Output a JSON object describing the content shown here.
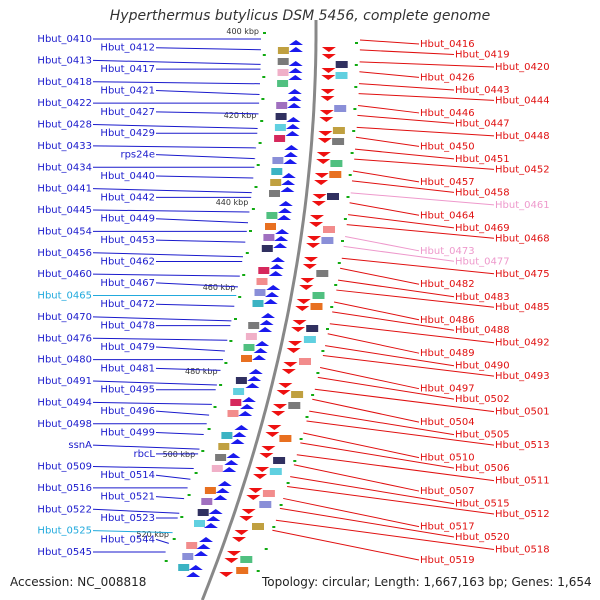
{
  "title": "Hyperthermus butylicus DSM 5456, complete genome",
  "footer": {
    "accession": "Accession: NC_008818",
    "topology": "Topology: circular; Length: 1,667,163 bp; Genes: 1,654"
  },
  "colors": {
    "left_label": "#1a1acc",
    "left_label_light": "#22aadd",
    "right_label": "#e01010",
    "right_label_light": "#ee99cc",
    "backbone": "#888888",
    "tick_mark": "#11aa11",
    "forward_arrow": "#1a1aee",
    "reverse_arrow": "#ee1111"
  },
  "scale_labels": [
    {
      "text": "400 kbp"
    },
    {
      "text": "420 kbp"
    },
    {
      "text": "440 kbp"
    },
    {
      "text": "460 kbp"
    },
    {
      "text": "480 kbp"
    },
    {
      "text": "500 kbp"
    },
    {
      "text": "520 kbp"
    }
  ],
  "left_genes": [
    {
      "text": "Hbut_0410",
      "style": "normal"
    },
    {
      "text": "Hbut_0412",
      "style": "normal"
    },
    {
      "text": "Hbut_0413",
      "style": "normal"
    },
    {
      "text": "Hbut_0417",
      "style": "normal"
    },
    {
      "text": "Hbut_0418",
      "style": "normal"
    },
    {
      "text": "Hbut_0421",
      "style": "normal"
    },
    {
      "text": "Hbut_0422",
      "style": "normal"
    },
    {
      "text": "Hbut_0427",
      "style": "normal"
    },
    {
      "text": "Hbut_0428",
      "style": "normal"
    },
    {
      "text": "Hbut_0429",
      "style": "normal"
    },
    {
      "text": "Hbut_0433",
      "style": "normal"
    },
    {
      "text": "rps24e",
      "style": "normal"
    },
    {
      "text": "Hbut_0434",
      "style": "normal"
    },
    {
      "text": "Hbut_0440",
      "style": "normal"
    },
    {
      "text": "Hbut_0441",
      "style": "normal"
    },
    {
      "text": "Hbut_0442",
      "style": "normal"
    },
    {
      "text": "Hbut_0445",
      "style": "normal"
    },
    {
      "text": "Hbut_0449",
      "style": "normal"
    },
    {
      "text": "Hbut_0454",
      "style": "normal"
    },
    {
      "text": "Hbut_0453",
      "style": "normal"
    },
    {
      "text": "Hbut_0456",
      "style": "normal"
    },
    {
      "text": "Hbut_0462",
      "style": "normal"
    },
    {
      "text": "Hbut_0460",
      "style": "normal"
    },
    {
      "text": "Hbut_0467",
      "style": "normal"
    },
    {
      "text": "Hbut_0465",
      "style": "light"
    },
    {
      "text": "Hbut_0472",
      "style": "normal"
    },
    {
      "text": "Hbut_0470",
      "style": "normal"
    },
    {
      "text": "Hbut_0478",
      "style": "normal"
    },
    {
      "text": "Hbut_0476",
      "style": "normal"
    },
    {
      "text": "Hbut_0479",
      "style": "normal"
    },
    {
      "text": "Hbut_0480",
      "style": "normal"
    },
    {
      "text": "Hbut_0481",
      "style": "normal"
    },
    {
      "text": "Hbut_0491",
      "style": "normal"
    },
    {
      "text": "Hbut_0495",
      "style": "normal"
    },
    {
      "text": "Hbut_0494",
      "style": "normal"
    },
    {
      "text": "Hbut_0496",
      "style": "normal"
    },
    {
      "text": "Hbut_0498",
      "style": "normal"
    },
    {
      "text": "Hbut_0499",
      "style": "normal"
    },
    {
      "text": "ssnA",
      "style": "normal"
    },
    {
      "text": "rbcL",
      "style": "normal"
    },
    {
      "text": "Hbut_0509",
      "style": "normal"
    },
    {
      "text": "Hbut_0514",
      "style": "normal"
    },
    {
      "text": "Hbut_0516",
      "style": "normal"
    },
    {
      "text": "Hbut_0521",
      "style": "normal"
    },
    {
      "text": "Hbut_0522",
      "style": "normal"
    },
    {
      "text": "Hbut_0523",
      "style": "normal"
    },
    {
      "text": "Hbut_0525",
      "style": "light"
    },
    {
      "text": "Hbut_0544",
      "style": "normal"
    },
    {
      "text": "Hbut_0545",
      "style": "normal"
    }
  ],
  "right_genes": [
    {
      "text": "Hbut_0416",
      "style": "normal"
    },
    {
      "text": "Hbut_0419",
      "style": "normal"
    },
    {
      "text": "Hbut_0420",
      "style": "normal"
    },
    {
      "text": "Hbut_0426",
      "style": "normal"
    },
    {
      "text": "Hbut_0443",
      "style": "normal"
    },
    {
      "text": "Hbut_0444",
      "style": "normal"
    },
    {
      "text": "Hbut_0446",
      "style": "normal"
    },
    {
      "text": "Hbut_0447",
      "style": "normal"
    },
    {
      "text": "Hbut_0448",
      "style": "normal"
    },
    {
      "text": "Hbut_0450",
      "style": "normal"
    },
    {
      "text": "Hbut_0451",
      "style": "normal"
    },
    {
      "text": "Hbut_0452",
      "style": "normal"
    },
    {
      "text": "Hbut_0457",
      "style": "normal"
    },
    {
      "text": "Hbut_0458",
      "style": "normal"
    },
    {
      "text": "Hbut_0461",
      "style": "light"
    },
    {
      "text": "Hbut_0464",
      "style": "normal"
    },
    {
      "text": "Hbut_0469",
      "style": "normal"
    },
    {
      "text": "Hbut_0468",
      "style": "normal"
    },
    {
      "text": "Hbut_0473",
      "style": "light"
    },
    {
      "text": "Hbut_0477",
      "style": "light"
    },
    {
      "text": "Hbut_0475",
      "style": "normal"
    },
    {
      "text": "Hbut_0482",
      "style": "normal"
    },
    {
      "text": "Hbut_0483",
      "style": "normal"
    },
    {
      "text": "Hbut_0485",
      "style": "normal"
    },
    {
      "text": "Hbut_0486",
      "style": "normal"
    },
    {
      "text": "Hbut_0488",
      "style": "normal"
    },
    {
      "text": "Hbut_0492",
      "style": "normal"
    },
    {
      "text": "Hbut_0489",
      "style": "normal"
    },
    {
      "text": "Hbut_0490",
      "style": "normal"
    },
    {
      "text": "Hbut_0493",
      "style": "normal"
    },
    {
      "text": "Hbut_0497",
      "style": "normal"
    },
    {
      "text": "Hbut_0502",
      "style": "normal"
    },
    {
      "text": "Hbut_0501",
      "style": "normal"
    },
    {
      "text": "Hbut_0504",
      "style": "normal"
    },
    {
      "text": "Hbut_0505",
      "style": "normal"
    },
    {
      "text": "Hbut_0513",
      "style": "normal"
    },
    {
      "text": "Hbut_0510",
      "style": "normal"
    },
    {
      "text": "Hbut_0506",
      "style": "normal"
    },
    {
      "text": "Hbut_0511",
      "style": "normal"
    },
    {
      "text": "Hbut_0507",
      "style": "normal"
    },
    {
      "text": "Hbut_0515",
      "style": "normal"
    },
    {
      "text": "Hbut_0512",
      "style": "normal"
    },
    {
      "text": "Hbut_0517",
      "style": "normal"
    },
    {
      "text": "Hbut_0520",
      "style": "normal"
    },
    {
      "text": "Hbut_0518",
      "style": "normal"
    },
    {
      "text": "Hbut_0519",
      "style": "normal"
    }
  ]
}
